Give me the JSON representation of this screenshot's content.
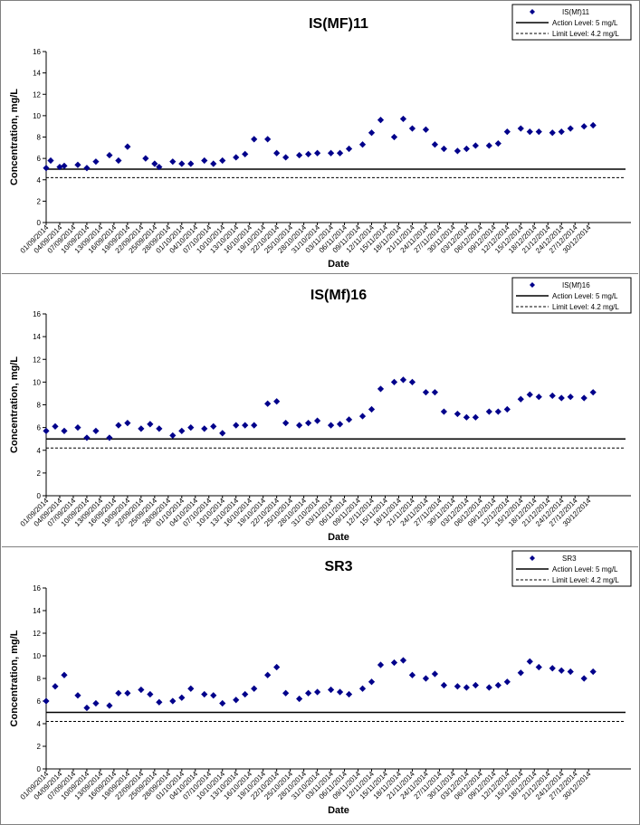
{
  "chart_data": [
    {
      "type": "scatter",
      "title": "IS(MF)11",
      "xlabel": "Date",
      "ylabel": "Concentration, mg/L",
      "ylim": [
        0,
        16
      ],
      "yticks": [
        0,
        2,
        4,
        6,
        8,
        10,
        12,
        14,
        16
      ],
      "x_tick_labels": [
        "01/09/2014",
        "04/09/2014",
        "07/09/2014",
        "10/09/2014",
        "13/09/2014",
        "16/09/2014",
        "19/09/2014",
        "22/09/2014",
        "25/09/2014",
        "28/09/2014",
        "01/10/2014",
        "04/10/2014",
        "07/10/2014",
        "10/10/2014",
        "13/10/2014",
        "16/10/2014",
        "19/10/2014",
        "22/10/2014",
        "25/10/2014",
        "28/10/2014",
        "31/10/2014",
        "03/11/2014",
        "06/11/2014",
        "09/11/2014",
        "12/11/2014",
        "15/11/2014",
        "18/11/2014",
        "21/11/2014",
        "24/11/2014",
        "27/11/2014",
        "30/11/2014",
        "03/12/2014",
        "06/12/2014",
        "09/12/2014",
        "12/12/2014",
        "15/12/2014",
        "18/12/2014",
        "21/12/2014",
        "24/12/2014",
        "27/12/2014",
        "30/12/2014"
      ],
      "legend_position": "top-right",
      "legend": [
        "IS(Mf)11",
        "Action Level: 5 mg/L",
        "Limit Level: 4.2 mg/L"
      ],
      "marker_color": "#00008b",
      "series": [
        {
          "x": [
            "01/09/2014",
            "02/09/2014",
            "04/09/2014",
            "05/09/2014",
            "08/09/2014",
            "10/09/2014",
            "12/09/2014",
            "15/09/2014",
            "17/09/2014",
            "19/09/2014",
            "23/09/2014",
            "25/09/2014",
            "26/09/2014",
            "29/09/2014",
            "01/10/2014",
            "03/10/2014",
            "06/10/2014",
            "08/10/2014",
            "10/10/2014",
            "13/10/2014",
            "15/10/2014",
            "17/10/2014",
            "20/10/2014",
            "22/10/2014",
            "24/10/2014",
            "27/10/2014",
            "29/10/2014",
            "31/10/2014",
            "03/11/2014",
            "05/11/2014",
            "07/11/2014",
            "10/11/2014",
            "12/11/2014",
            "14/11/2014",
            "17/11/2014",
            "19/11/2014",
            "21/11/2014",
            "24/11/2014",
            "26/11/2014",
            "28/11/2014",
            "01/12/2014",
            "03/12/2014",
            "05/12/2014",
            "08/12/2014",
            "10/12/2014",
            "12/12/2014",
            "15/12/2014",
            "17/12/2014",
            "19/12/2014",
            "22/12/2014",
            "24/12/2014",
            "26/12/2014",
            "29/12/2014",
            "31/12/2014"
          ],
          "y": [
            5.1,
            5.8,
            5.2,
            5.3,
            5.4,
            5.1,
            5.7,
            6.3,
            5.8,
            7.1,
            6.0,
            5.5,
            5.2,
            5.7,
            5.5,
            5.5,
            5.8,
            5.5,
            5.8,
            6.1,
            6.4,
            7.8,
            7.8,
            6.5,
            6.1,
            6.3,
            6.4,
            6.5,
            6.5,
            6.5,
            6.9,
            7.3,
            8.4,
            9.6,
            8.0,
            9.7,
            8.8,
            8.7,
            7.3,
            6.9,
            6.7,
            6.9,
            7.2,
            7.2,
            7.4,
            8.5,
            8.8,
            8.5,
            8.5,
            8.4,
            8.5,
            8.8,
            9.0,
            9.1
          ]
        }
      ],
      "reference_lines": [
        {
          "name": "Action Level: 5 mg/L",
          "y": 5,
          "style": "solid"
        },
        {
          "name": "Limit Level: 4.2 mg/L",
          "y": 4.2,
          "style": "dashed"
        }
      ],
      "grid": false
    },
    {
      "type": "scatter",
      "title": "IS(Mf)16",
      "xlabel": "Date",
      "ylabel": "Concentration, mg/L",
      "ylim": [
        0,
        16
      ],
      "yticks": [
        0,
        2,
        4,
        6,
        8,
        10,
        12,
        14,
        16
      ],
      "x_tick_labels": [
        "01/09/2014",
        "04/09/2014",
        "07/09/2014",
        "10/09/2014",
        "13/09/2014",
        "16/09/2014",
        "19/09/2014",
        "22/09/2014",
        "25/09/2014",
        "28/09/2014",
        "01/10/2014",
        "04/10/2014",
        "07/10/2014",
        "10/10/2014",
        "13/10/2014",
        "16/10/2014",
        "19/10/2014",
        "22/10/2014",
        "25/10/2014",
        "28/10/2014",
        "31/10/2014",
        "03/11/2014",
        "06/11/2014",
        "09/11/2014",
        "12/11/2014",
        "15/11/2014",
        "18/11/2014",
        "21/11/2014",
        "24/11/2014",
        "27/11/2014",
        "30/11/2014",
        "03/12/2014",
        "06/12/2014",
        "09/12/2014",
        "12/12/2014",
        "15/12/2014",
        "18/12/2014",
        "21/12/2014",
        "24/12/2014",
        "27/12/2014",
        "30/12/2014"
      ],
      "legend_position": "top-right",
      "legend": [
        "IS(Mf)16",
        "Action Level: 5 mg/L",
        "Limit Level: 4.2 mg/L"
      ],
      "marker_color": "#00008b",
      "series": [
        {
          "x": [
            "01/09/2014",
            "03/09/2014",
            "05/09/2014",
            "08/09/2014",
            "10/09/2014",
            "12/09/2014",
            "15/09/2014",
            "17/09/2014",
            "19/09/2014",
            "22/09/2014",
            "24/09/2014",
            "26/09/2014",
            "29/09/2014",
            "01/10/2014",
            "03/10/2014",
            "06/10/2014",
            "08/10/2014",
            "10/10/2014",
            "13/10/2014",
            "15/10/2014",
            "17/10/2014",
            "20/10/2014",
            "22/10/2014",
            "24/10/2014",
            "27/10/2014",
            "29/10/2014",
            "31/10/2014",
            "03/11/2014",
            "05/11/2014",
            "07/11/2014",
            "10/11/2014",
            "12/11/2014",
            "14/11/2014",
            "17/11/2014",
            "19/11/2014",
            "21/11/2014",
            "24/11/2014",
            "26/11/2014",
            "28/11/2014",
            "01/12/2014",
            "03/12/2014",
            "05/12/2014",
            "08/12/2014",
            "10/12/2014",
            "12/12/2014",
            "15/12/2014",
            "17/12/2014",
            "19/12/2014",
            "22/12/2014",
            "24/12/2014",
            "26/12/2014",
            "29/12/2014",
            "31/12/2014"
          ],
          "y": [
            5.7,
            6.1,
            5.7,
            6.0,
            5.1,
            5.7,
            5.1,
            6.2,
            6.4,
            5.9,
            6.3,
            5.9,
            5.3,
            5.7,
            6.0,
            5.9,
            6.1,
            5.5,
            6.2,
            6.2,
            6.2,
            8.1,
            8.3,
            6.4,
            6.2,
            6.4,
            6.6,
            6.2,
            6.3,
            6.7,
            7.0,
            7.6,
            9.4,
            10.0,
            10.2,
            10.0,
            9.1,
            9.1,
            7.4,
            7.2,
            6.9,
            6.9,
            7.4,
            7.4,
            7.6,
            8.5,
            8.9,
            8.7,
            8.8,
            8.6,
            8.7,
            8.6,
            9.1
          ]
        }
      ],
      "reference_lines": [
        {
          "name": "Action Level: 5 mg/L",
          "y": 5,
          "style": "solid"
        },
        {
          "name": "Limit Level: 4.2 mg/L",
          "y": 4.2,
          "style": "dashed"
        }
      ],
      "grid": false
    },
    {
      "type": "scatter",
      "title": "SR3",
      "xlabel": "Date",
      "ylabel": "Concentration, mg/L",
      "ylim": [
        0,
        16
      ],
      "yticks": [
        0,
        2,
        4,
        6,
        8,
        10,
        12,
        14,
        16
      ],
      "x_tick_labels": [
        "01/09/2014",
        "04/09/2014",
        "07/09/2014",
        "10/09/2014",
        "13/09/2014",
        "16/09/2014",
        "19/09/2014",
        "22/09/2014",
        "25/09/2014",
        "28/09/2014",
        "01/10/2014",
        "04/10/2014",
        "07/10/2014",
        "10/10/2014",
        "13/10/2014",
        "16/10/2014",
        "19/10/2014",
        "22/10/2014",
        "25/10/2014",
        "28/10/2014",
        "31/10/2014",
        "03/11/2014",
        "06/11/2014",
        "09/11/2014",
        "12/11/2014",
        "15/11/2014",
        "18/11/2014",
        "21/11/2014",
        "24/11/2014",
        "27/11/2014",
        "30/11/2014",
        "03/12/2014",
        "06/12/2014",
        "09/12/2014",
        "12/12/2014",
        "15/12/2014",
        "18/12/2014",
        "21/12/2014",
        "24/12/2014",
        "27/12/2014",
        "30/12/2014"
      ],
      "legend_position": "top-right",
      "legend": [
        "SR3",
        "Action Level: 5 mg/L",
        "Limit Level: 4.2 mg/L"
      ],
      "marker_color": "#00008b",
      "series": [
        {
          "x": [
            "01/09/2014",
            "03/09/2014",
            "05/09/2014",
            "08/09/2014",
            "10/09/2014",
            "12/09/2014",
            "15/09/2014",
            "17/09/2014",
            "19/09/2014",
            "22/09/2014",
            "24/09/2014",
            "26/09/2014",
            "29/09/2014",
            "01/10/2014",
            "03/10/2014",
            "06/10/2014",
            "08/10/2014",
            "10/10/2014",
            "13/10/2014",
            "15/10/2014",
            "17/10/2014",
            "20/10/2014",
            "22/10/2014",
            "24/10/2014",
            "27/10/2014",
            "29/10/2014",
            "31/10/2014",
            "03/11/2014",
            "05/11/2014",
            "07/11/2014",
            "10/11/2014",
            "12/11/2014",
            "14/11/2014",
            "17/11/2014",
            "19/11/2014",
            "21/11/2014",
            "24/11/2014",
            "26/11/2014",
            "28/11/2014",
            "01/12/2014",
            "03/12/2014",
            "05/12/2014",
            "08/12/2014",
            "10/12/2014",
            "12/12/2014",
            "15/12/2014",
            "17/12/2014",
            "19/12/2014",
            "22/12/2014",
            "24/12/2014",
            "26/12/2014",
            "29/12/2014",
            "31/12/2014"
          ],
          "y": [
            6.0,
            7.3,
            8.3,
            6.5,
            5.4,
            5.8,
            5.6,
            6.7,
            6.7,
            7.0,
            6.6,
            5.9,
            6.0,
            6.3,
            7.1,
            6.6,
            6.5,
            5.8,
            6.1,
            6.6,
            7.1,
            8.3,
            9.0,
            6.7,
            6.2,
            6.7,
            6.8,
            7.0,
            6.8,
            6.6,
            7.1,
            7.7,
            9.2,
            9.4,
            9.6,
            8.3,
            8.0,
            8.4,
            7.4,
            7.3,
            7.2,
            7.4,
            7.2,
            7.4,
            7.7,
            8.5,
            9.5,
            9.0,
            8.9,
            8.7,
            8.6,
            8.0,
            8.6
          ]
        }
      ],
      "reference_lines": [
        {
          "name": "Action Level: 5 mg/L",
          "y": 5,
          "style": "solid"
        },
        {
          "name": "Limit Level: 4.2 mg/L",
          "y": 4.2,
          "style": "dashed"
        }
      ],
      "grid": false
    }
  ]
}
